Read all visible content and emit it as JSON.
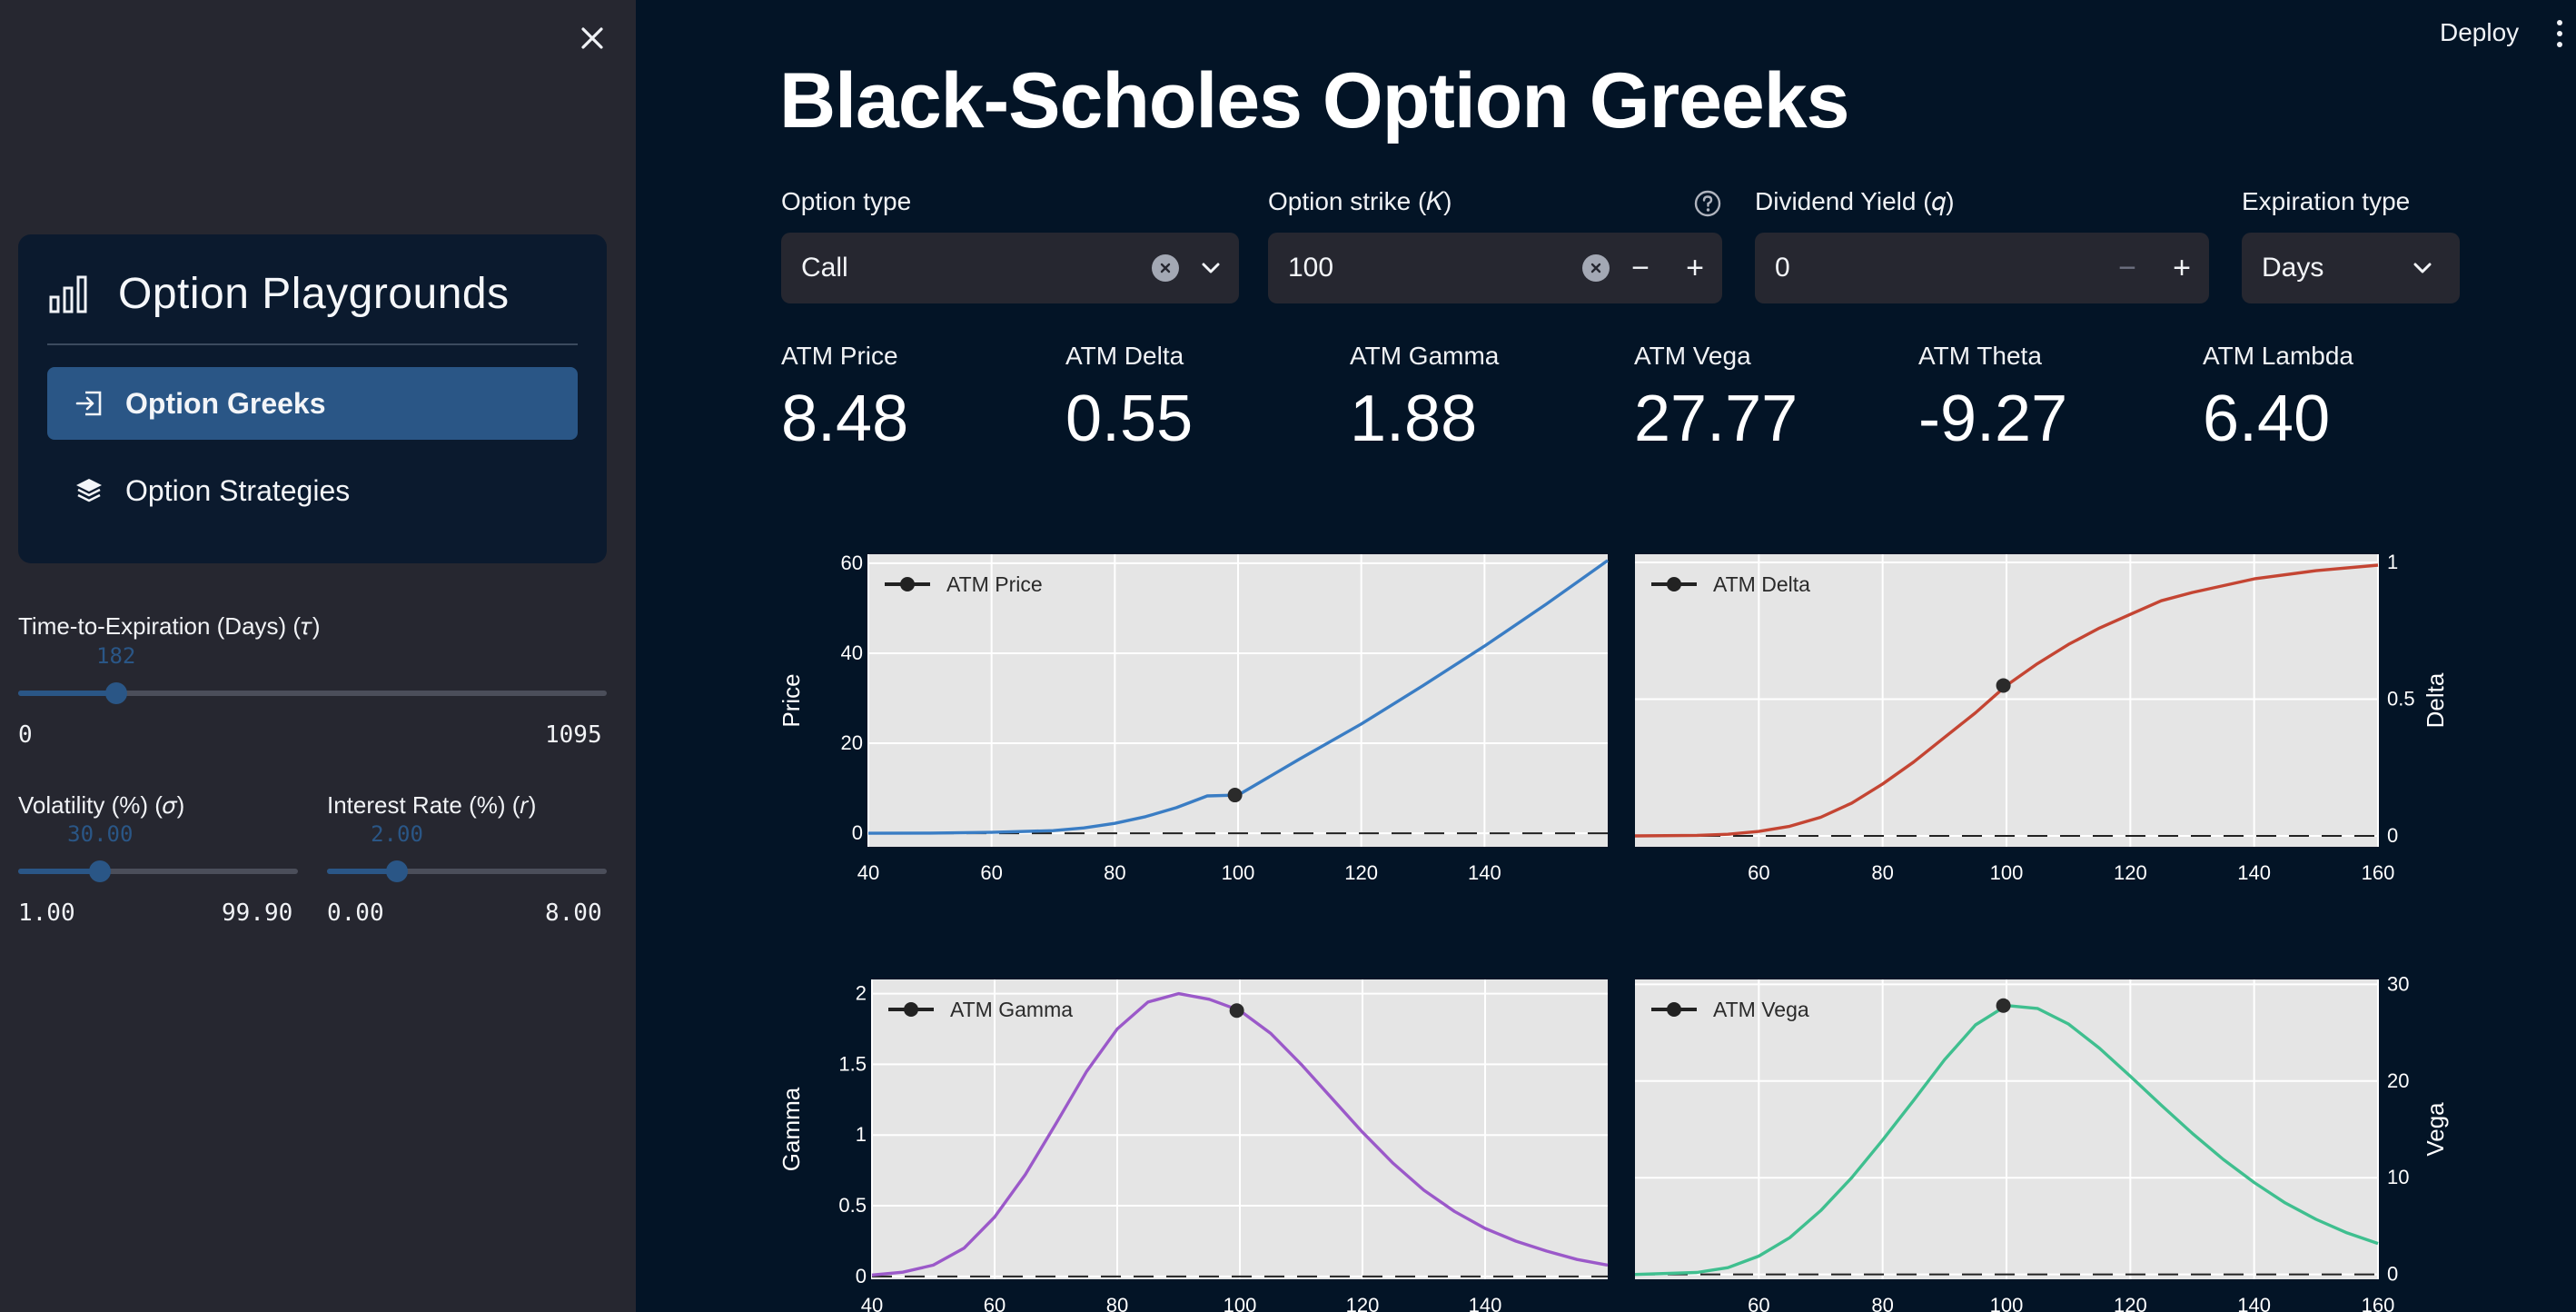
{
  "sidebar": {
    "nav_title": "Option Playgrounds",
    "items": [
      {
        "label": "Option Greeks",
        "icon": "login-arrow-icon",
        "active": true
      },
      {
        "label": "Option Strategies",
        "icon": "layers-icon",
        "active": false
      }
    ],
    "sliders": {
      "tte": {
        "label": "Time-to-Expiration (Days) (𝜏)",
        "value": "182",
        "min": "0",
        "max": "1095",
        "fraction": 0.1662
      },
      "vol": {
        "label": "Volatility (%) (𝜎)",
        "value": "30.00",
        "min": "1.00",
        "max": "99.90",
        "fraction": 0.2932
      },
      "rate": {
        "label": "Interest Rate (%) (𝑟)",
        "value": "2.00",
        "min": "0.00",
        "max": "8.00",
        "fraction": 0.25
      }
    }
  },
  "header": {
    "deploy_label": "Deploy"
  },
  "page_title": "Black-Scholes Option Greeks",
  "inputs": {
    "option_type": {
      "label": "Option type",
      "value": "Call"
    },
    "strike": {
      "label": "Option strike (𝐾)",
      "value": "100"
    },
    "dividend": {
      "label": "Dividend Yield (𝑞)",
      "value": "0"
    },
    "expiration": {
      "label": "Expiration type",
      "value": "Days"
    }
  },
  "metrics": [
    {
      "label": "ATM Price",
      "value": "8.48"
    },
    {
      "label": "ATM Delta",
      "value": "0.55"
    },
    {
      "label": "ATM Gamma",
      "value": "1.88"
    },
    {
      "label": "ATM Vega",
      "value": "27.77"
    },
    {
      "label": "ATM Theta",
      "value": "-9.27"
    },
    {
      "label": "ATM Lambda",
      "value": "6.40"
    }
  ],
  "colors": {
    "accent": "#2a5686",
    "price": "#3a7dc4",
    "delta": "#c44533",
    "gamma": "#9b59c9",
    "vega": "#3fbf8f",
    "plot_bg": "#e5e5e5",
    "marker": "#2b2b2b"
  },
  "chart_data": [
    {
      "type": "line",
      "legend": "ATM Price",
      "ylabel": "Price",
      "yaxis_side": "left",
      "color_key": "price",
      "xlim": [
        40,
        160
      ],
      "ylim": [
        -3,
        62
      ],
      "xticks": [
        "40",
        "60",
        "80",
        "100",
        "120",
        "140"
      ],
      "xtick_values": [
        40,
        60,
        80,
        100,
        120,
        140
      ],
      "yticks": [
        "0",
        "20",
        "40",
        "60"
      ],
      "ytick_values": [
        0,
        20,
        40,
        60
      ],
      "x": [
        40,
        50,
        60,
        70,
        75,
        80,
        85,
        90,
        95,
        100,
        110,
        120,
        130,
        140,
        150,
        160
      ],
      "y": [
        0,
        0.05,
        0.2,
        0.6,
        1.2,
        2.2,
        3.7,
        5.7,
        8.3,
        8.48,
        16.5,
        24.3,
        32.8,
        41.6,
        50.9,
        60.6
      ],
      "marker": {
        "x": 99.5,
        "y": 8.5
      }
    },
    {
      "type": "line",
      "legend": "ATM Delta",
      "ylabel": "Delta",
      "yaxis_side": "right",
      "color_key": "delta",
      "xlim": [
        40,
        160
      ],
      "ylim": [
        -0.04,
        1.03
      ],
      "xticks": [
        "60",
        "80",
        "100",
        "120",
        "140",
        "160"
      ],
      "xtick_values": [
        60,
        80,
        100,
        120,
        140,
        160
      ],
      "yticks": [
        "0",
        "0.5",
        "1"
      ],
      "ytick_values": [
        0,
        0.5,
        1
      ],
      "x": [
        40,
        50,
        55,
        60,
        65,
        70,
        75,
        80,
        85,
        90,
        95,
        100,
        105,
        110,
        115,
        120,
        125,
        130,
        140,
        150,
        160
      ],
      "y": [
        0,
        0.002,
        0.006,
        0.016,
        0.035,
        0.068,
        0.12,
        0.19,
        0.27,
        0.36,
        0.45,
        0.55,
        0.63,
        0.7,
        0.76,
        0.81,
        0.86,
        0.89,
        0.94,
        0.97,
        0.99
      ],
      "marker": {
        "x": 99.5,
        "y": 0.55
      }
    },
    {
      "type": "line",
      "legend": "ATM Gamma",
      "ylabel": "Gamma",
      "yaxis_side": "left",
      "color_key": "gamma",
      "xlim": [
        40,
        160
      ],
      "ylim": [
        -0.02,
        2.1
      ],
      "xticks": [
        "40",
        "60",
        "80",
        "100",
        "120",
        "140"
      ],
      "xtick_values": [
        40,
        60,
        80,
        100,
        120,
        140
      ],
      "yticks": [
        "0",
        "0.5",
        "1",
        "1.5",
        "2"
      ],
      "ytick_values": [
        0,
        0.5,
        1,
        1.5,
        2
      ],
      "x": [
        40,
        45,
        50,
        55,
        60,
        65,
        70,
        75,
        80,
        85,
        90,
        95,
        100,
        105,
        110,
        115,
        120,
        125,
        130,
        135,
        140,
        145,
        150,
        155,
        160
      ],
      "y": [
        0.01,
        0.03,
        0.08,
        0.2,
        0.42,
        0.72,
        1.08,
        1.45,
        1.75,
        1.94,
        2.0,
        1.96,
        1.88,
        1.72,
        1.5,
        1.26,
        1.02,
        0.8,
        0.61,
        0.46,
        0.34,
        0.25,
        0.18,
        0.12,
        0.08
      ],
      "marker": {
        "x": 99.5,
        "y": 1.88
      }
    },
    {
      "type": "line",
      "legend": "ATM Vega",
      "ylabel": "Vega",
      "yaxis_side": "right",
      "color_key": "vega",
      "xlim": [
        40,
        160
      ],
      "ylim": [
        -0.5,
        30.5
      ],
      "xticks": [
        "60",
        "80",
        "100",
        "120",
        "140",
        "160"
      ],
      "xtick_values": [
        60,
        80,
        100,
        120,
        140,
        160
      ],
      "yticks": [
        "0",
        "10",
        "20",
        "30"
      ],
      "ytick_values": [
        0,
        10,
        20,
        30
      ],
      "x": [
        40,
        50,
        55,
        60,
        65,
        70,
        75,
        80,
        85,
        90,
        95,
        100,
        105,
        110,
        115,
        120,
        125,
        130,
        135,
        140,
        145,
        150,
        155,
        160
      ],
      "y": [
        0,
        0.2,
        0.7,
        1.9,
        3.8,
        6.6,
        10.0,
        13.9,
        18.0,
        22.2,
        25.8,
        27.8,
        27.5,
        25.9,
        23.4,
        20.5,
        17.5,
        14.6,
        11.9,
        9.5,
        7.4,
        5.7,
        4.3,
        3.2
      ],
      "marker": {
        "x": 99.5,
        "y": 27.8
      }
    }
  ]
}
